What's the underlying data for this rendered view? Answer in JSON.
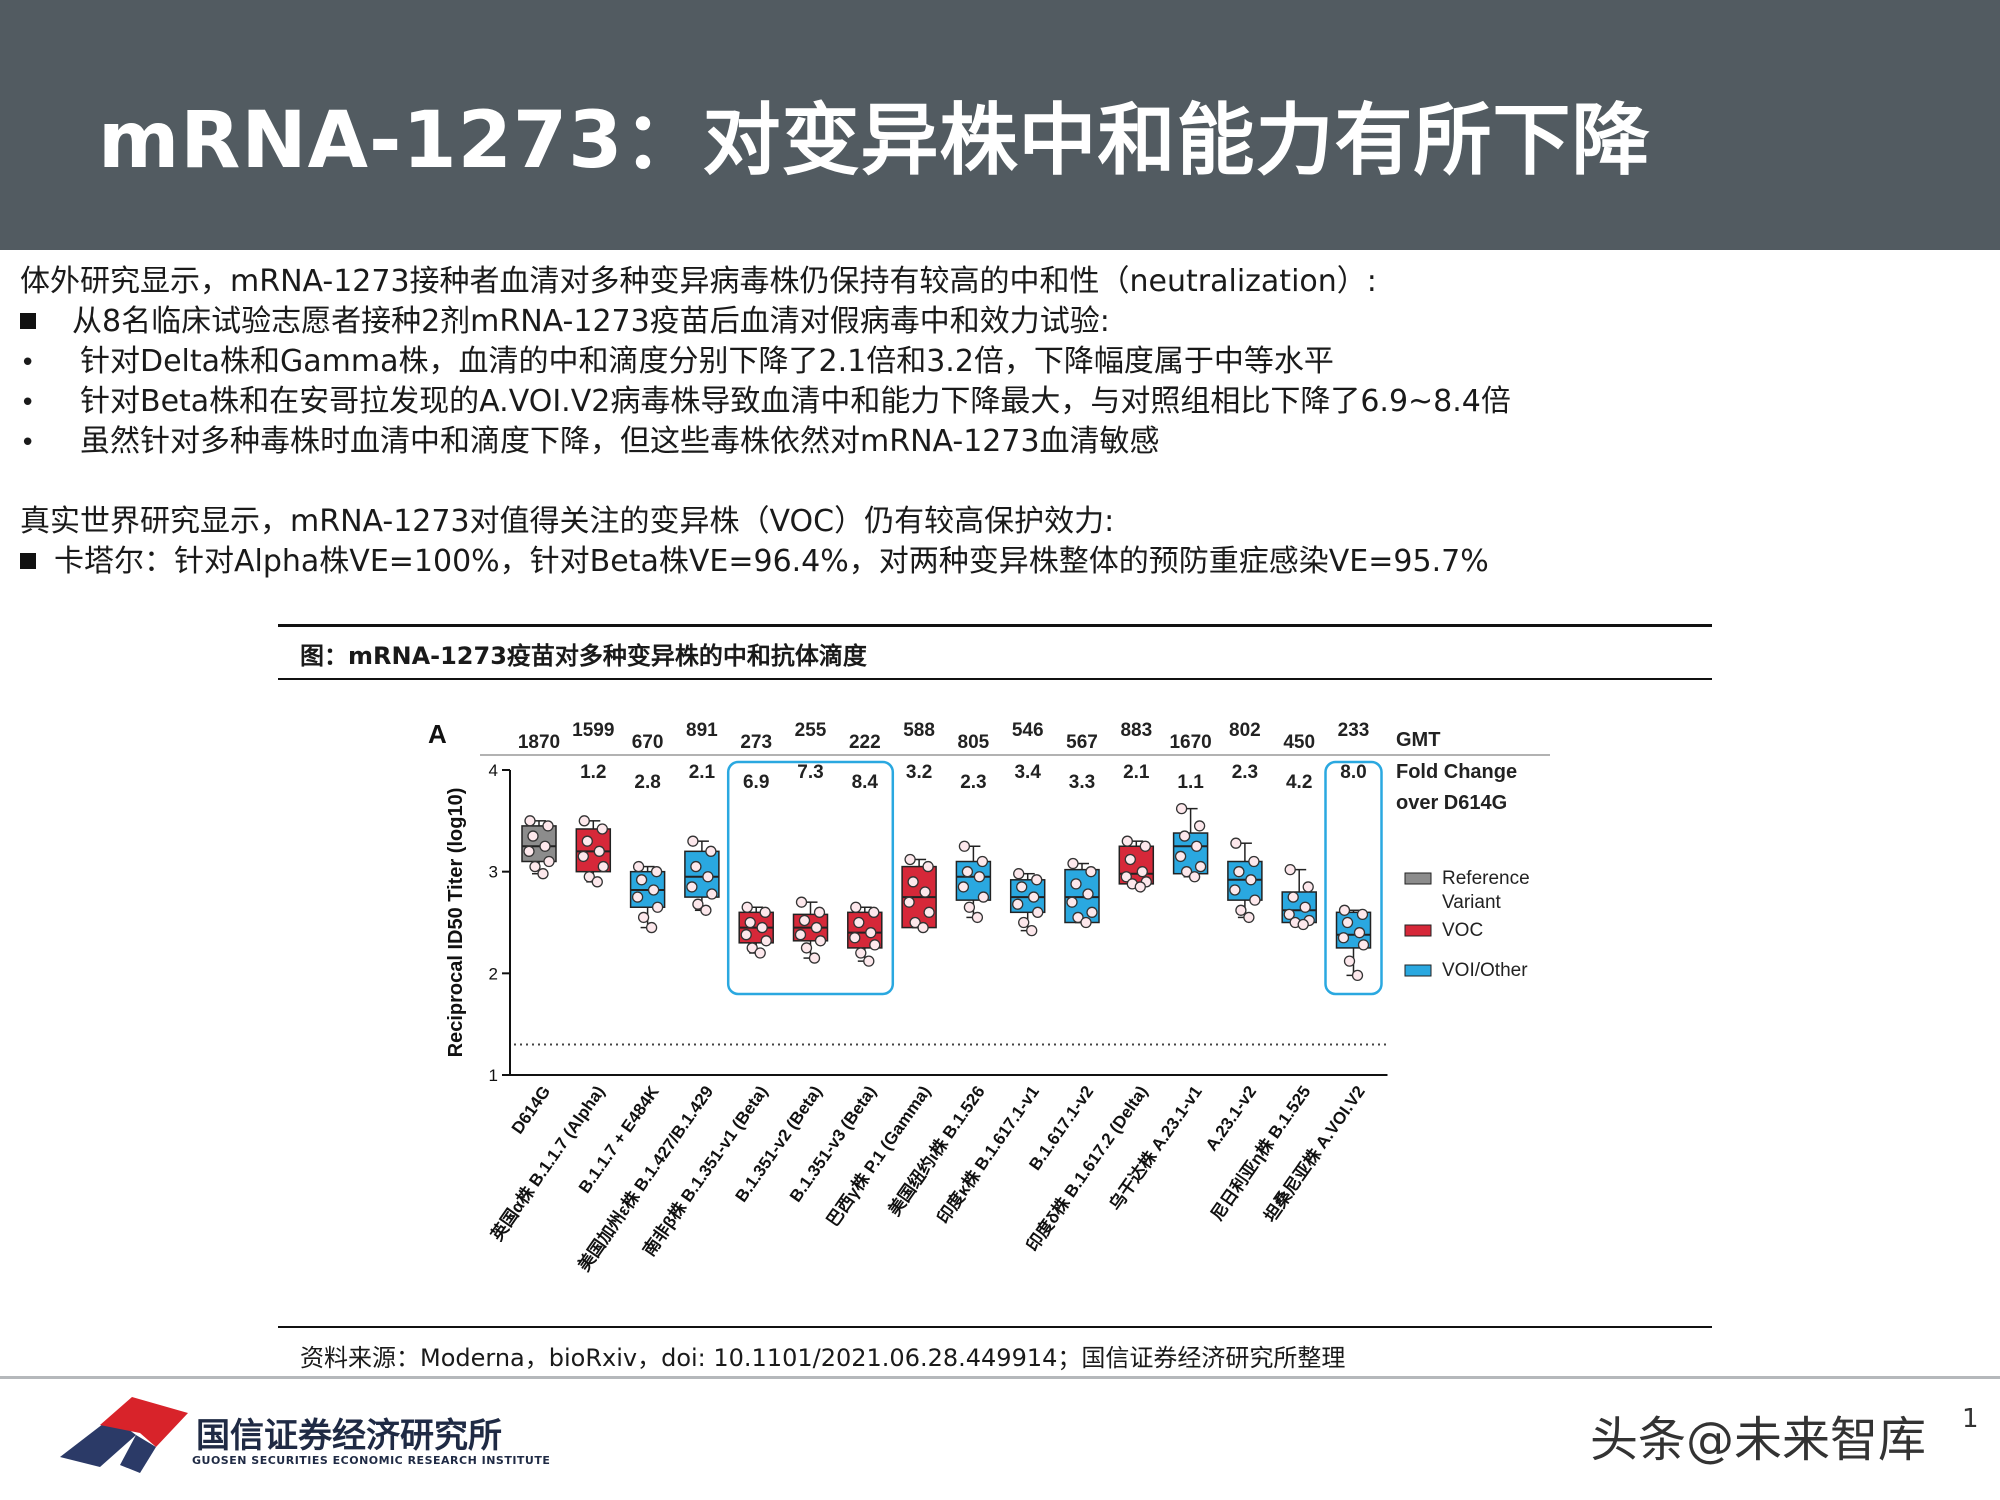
{
  "header": {
    "title": "mRNA-1273：对变异株中和能力有所下降"
  },
  "body": {
    "intro1": "体外研究显示，mRNA-1273接种者血清对多种变异病毒株仍保持有较高的中和性（neutralization）:",
    "bullet1": "从8名临床试验志愿者接种2剂mRNA-1273疫苗后血清对假病毒中和效力试验:",
    "sub1": "针对Delta株和Gamma株，血清的中和滴度分别下降了2.1倍和3.2倍，下降幅度属于中等水平",
    "sub2": "针对Beta株和在安哥拉发现的A.VOI.V2病毒株导致血清中和能力下降最大，与对照组相比下降了6.9~8.4倍",
    "sub3": "虽然针对多种毒株时血清中和滴度下降，但这些毒株依然对mRNA-1273血清敏感",
    "intro2": "真实世界研究显示，mRNA-1273对值得关注的变异株（VOC）仍有较高保护效力:",
    "bullet2": "卡塔尔：针对Alpha株VE=100%，针对Beta株VE=96.4%，对两种变异株整体的预防重症感染VE=95.7%",
    "dot": "•"
  },
  "figure": {
    "caption": "图：mRNA-1273疫苗对多种变异株的中和抗体滴度",
    "source": "资料来源：Moderna，bioRxiv，doi: 10.1101/2021.06.28.449914；国信证券经济研究所整理"
  },
  "chart_data": {
    "type": "box",
    "panel_label": "A",
    "ylabel": "Reciprocal ID50 Titer (log10)",
    "ylim": [
      1,
      4
    ],
    "yticks": [
      "1",
      "2",
      "3",
      "4"
    ],
    "limit_of_detection": 1.3,
    "gmt_header": "GMT",
    "fold_header_1": "Fold Change",
    "fold_header_2": "over D614G",
    "categories": [
      "D614G",
      "英国α株 B.1.1.7 (Alpha)",
      "B.1.1.7 + E484K",
      "美国加州ε株 B.1.427/B.1.429",
      "南非β株 B.1.351-v1 (Beta)",
      "B.1.351-v2 (Beta)",
      "B.1.351-v3 (Beta)",
      "巴西γ株 P.1 (Gamma)",
      "美国纽约ι株 B.1.526",
      "印度κ株 B.1.617.1-v1",
      "B.1.617.1-v2",
      "印度δ株 B.1.617.2 (Delta)",
      "乌干达株 A.23.1-v1",
      "A.23.1-v2",
      "尼日利亚η株 B.1.525",
      "坦桑尼亚株 A.VOI.V2"
    ],
    "gmt": [
      "1870",
      "1599",
      "670",
      "891",
      "273",
      "255",
      "222",
      "588",
      "805",
      "546",
      "567",
      "883",
      "1670",
      "802",
      "450",
      "233"
    ],
    "fold_change": [
      "",
      "1.2",
      "2.8",
      "2.1",
      "6.9",
      "7.3",
      "8.4",
      "3.2",
      "2.3",
      "3.4",
      "3.3",
      "2.1",
      "1.1",
      "2.3",
      "4.2",
      "8.0"
    ],
    "group": [
      "ref",
      "voc",
      "voi",
      "voi",
      "voc",
      "voc",
      "voc",
      "voc",
      "voi",
      "voi",
      "voi",
      "voc",
      "voi",
      "voi",
      "voi",
      "voi"
    ],
    "boxes": [
      {
        "q1": 3.1,
        "median": 3.25,
        "q3": 3.45,
        "min": 2.98,
        "max": 3.5,
        "points": [
          3.5,
          3.45,
          3.35,
          3.25,
          3.2,
          3.1,
          3.05,
          2.98
        ]
      },
      {
        "q1": 3.0,
        "median": 3.2,
        "q3": 3.42,
        "min": 2.9,
        "max": 3.5,
        "points": [
          3.5,
          3.42,
          3.3,
          3.2,
          3.15,
          3.05,
          2.95,
          2.9
        ]
      },
      {
        "q1": 2.65,
        "median": 2.82,
        "q3": 3.0,
        "min": 2.45,
        "max": 3.05,
        "points": [
          3.05,
          3.0,
          2.92,
          2.82,
          2.75,
          2.65,
          2.55,
          2.45
        ]
      },
      {
        "q1": 2.75,
        "median": 2.95,
        "q3": 3.2,
        "min": 2.62,
        "max": 3.3,
        "points": [
          3.3,
          3.2,
          3.05,
          2.95,
          2.85,
          2.78,
          2.68,
          2.62
        ]
      },
      {
        "q1": 2.3,
        "median": 2.45,
        "q3": 2.6,
        "min": 2.2,
        "max": 2.65,
        "points": [
          2.65,
          2.6,
          2.5,
          2.45,
          2.38,
          2.32,
          2.25,
          2.2
        ]
      },
      {
        "q1": 2.32,
        "median": 2.45,
        "q3": 2.58,
        "min": 2.15,
        "max": 2.7,
        "points": [
          2.7,
          2.6,
          2.52,
          2.45,
          2.38,
          2.32,
          2.25,
          2.15
        ]
      },
      {
        "q1": 2.25,
        "median": 2.4,
        "q3": 2.6,
        "min": 2.12,
        "max": 2.65,
        "points": [
          2.65,
          2.6,
          2.5,
          2.4,
          2.35,
          2.28,
          2.2,
          2.12
        ]
      },
      {
        "q1": 2.45,
        "median": 2.75,
        "q3": 3.05,
        "min": 2.45,
        "max": 3.12,
        "points": [
          3.12,
          3.05,
          2.9,
          2.8,
          2.7,
          2.6,
          2.5,
          2.45
        ]
      },
      {
        "q1": 2.72,
        "median": 2.95,
        "q3": 3.1,
        "min": 2.55,
        "max": 3.25,
        "points": [
          3.25,
          3.1,
          3.0,
          2.95,
          2.85,
          2.75,
          2.65,
          2.55
        ]
      },
      {
        "q1": 2.6,
        "median": 2.75,
        "q3": 2.92,
        "min": 2.42,
        "max": 2.98,
        "points": [
          2.98,
          2.92,
          2.85,
          2.75,
          2.68,
          2.6,
          2.5,
          2.42
        ]
      },
      {
        "q1": 2.5,
        "median": 2.75,
        "q3": 3.02,
        "min": 2.5,
        "max": 3.08,
        "points": [
          3.08,
          3.0,
          2.88,
          2.78,
          2.7,
          2.6,
          2.55,
          2.5
        ]
      },
      {
        "q1": 2.88,
        "median": 2.98,
        "q3": 3.25,
        "min": 2.85,
        "max": 3.3,
        "points": [
          3.3,
          3.25,
          3.12,
          3.0,
          2.95,
          2.9,
          2.88,
          2.85
        ]
      },
      {
        "q1": 2.98,
        "median": 3.25,
        "q3": 3.38,
        "min": 2.95,
        "max": 3.62,
        "points": [
          3.62,
          3.45,
          3.35,
          3.25,
          3.15,
          3.05,
          3.0,
          2.95
        ]
      },
      {
        "q1": 2.72,
        "median": 2.92,
        "q3": 3.1,
        "min": 2.55,
        "max": 3.28,
        "points": [
          3.28,
          3.1,
          3.0,
          2.92,
          2.82,
          2.72,
          2.62,
          2.55
        ]
      },
      {
        "q1": 2.5,
        "median": 2.62,
        "q3": 2.8,
        "min": 2.48,
        "max": 3.02,
        "points": [
          3.02,
          2.85,
          2.75,
          2.65,
          2.58,
          2.52,
          2.5,
          2.48
        ]
      },
      {
        "q1": 2.25,
        "median": 2.38,
        "q3": 2.6,
        "min": 1.98,
        "max": 2.62,
        "points": [
          2.62,
          2.58,
          2.5,
          2.4,
          2.35,
          2.28,
          2.12,
          1.98
        ]
      }
    ],
    "highlight_groups": [
      [
        4,
        6
      ],
      [
        15,
        15
      ]
    ],
    "legend": [
      {
        "key": "ref",
        "label1": "Reference",
        "label2": "Variant",
        "color": "#8c8c8c"
      },
      {
        "key": "voc",
        "label1": "VOC",
        "label2": "",
        "color": "#d62839"
      },
      {
        "key": "voi",
        "label1": "VOI/Other",
        "label2": "",
        "color": "#2aa8e0"
      }
    ]
  },
  "footer": {
    "logo_cn": "国信证券经济研究所",
    "logo_en": "GUOSEN SECURITIES ECONOMIC RESEARCH INSTITUTE",
    "watermark": "头条@未来智库",
    "page": "1"
  }
}
